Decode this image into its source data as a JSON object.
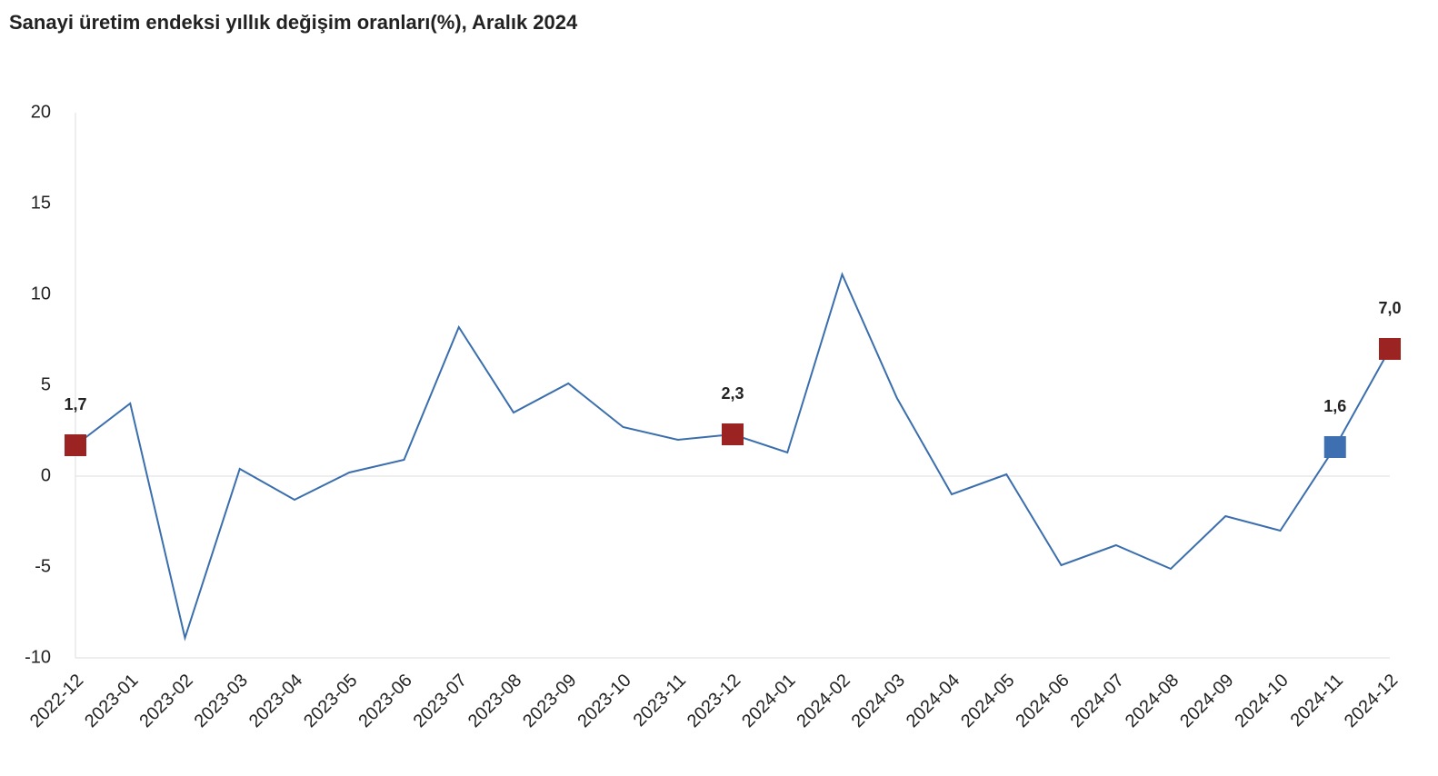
{
  "chart_data": {
    "type": "line",
    "title": "Sanayi üretim endeksi yıllık değişim oranları(%), Aralık 2024",
    "categories": [
      "2022-12",
      "2023-01",
      "2023-02",
      "2023-03",
      "2023-04",
      "2023-05",
      "2023-06",
      "2023-07",
      "2023-08",
      "2023-09",
      "2023-10",
      "2023-11",
      "2023-12",
      "2024-01",
      "2024-02",
      "2024-03",
      "2024-04",
      "2024-05",
      "2024-06",
      "2024-07",
      "2024-08",
      "2024-09",
      "2024-10",
      "2024-11",
      "2024-12"
    ],
    "series": [
      {
        "color": "#3a6ead",
        "values": [
          1.7,
          4.0,
          -8.9,
          0.4,
          -1.3,
          0.2,
          0.9,
          8.2,
          3.5,
          5.1,
          2.7,
          2.0,
          2.3,
          1.3,
          11.1,
          4.3,
          -1.0,
          0.1,
          -4.9,
          -3.8,
          -5.1,
          -2.2,
          -3.0,
          1.6,
          7.0
        ],
        "value_labels": [
          "1,7",
          null,
          null,
          null,
          null,
          null,
          null,
          null,
          null,
          null,
          null,
          null,
          "2,3",
          null,
          null,
          null,
          null,
          null,
          null,
          null,
          null,
          null,
          null,
          "1,6",
          "7,0"
        ],
        "marker_colors": [
          "#9b2423",
          null,
          null,
          null,
          null,
          null,
          null,
          null,
          null,
          null,
          null,
          null,
          "#9b2423",
          null,
          null,
          null,
          null,
          null,
          null,
          null,
          null,
          null,
          null,
          "#3e6fb0",
          "#9b2423"
        ]
      }
    ],
    "ylim": [
      -10,
      20
    ],
    "yticks": [
      -10,
      -5,
      0,
      5,
      10,
      15,
      20
    ],
    "grid": false
  }
}
